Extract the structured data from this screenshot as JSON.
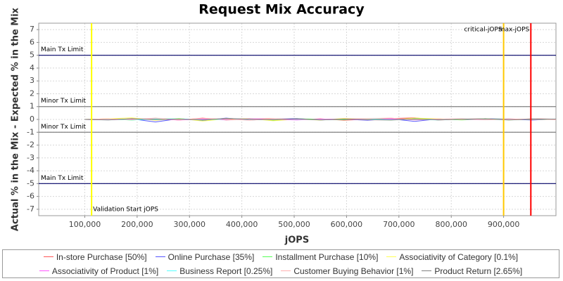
{
  "chart_data": {
    "type": "line",
    "title": "Request Mix Accuracy",
    "x_label": "jOPS",
    "y_label": "Actual % in the Mix - Expected % in the Mix",
    "x": [
      100000,
      145000,
      190000,
      235000,
      280000,
      325000,
      370000,
      415000,
      460000,
      505000,
      550000,
      595000,
      640000,
      685000,
      730000,
      775000,
      820000,
      865000,
      910000,
      955000,
      1000000
    ],
    "series": [
      {
        "name": "In-store Purchase [50%]",
        "color": "#ff5555",
        "values": [
          0,
          0.05,
          -0.03,
          0.08,
          -0.05,
          0.1,
          -0.04,
          0.03,
          0.06,
          -0.02,
          0.05,
          -0.06,
          0.02,
          0.07,
          0.12,
          -0.05,
          0.03,
          0.04,
          -0.02,
          0.05,
          0.02
        ]
      },
      {
        "name": "Online Purchase [35%]",
        "color": "#5555ff",
        "values": [
          0,
          -0.02,
          0.04,
          -0.2,
          0.06,
          -0.08,
          0.1,
          -0.05,
          0.03,
          0.07,
          -0.04,
          0.02,
          -0.06,
          0.05,
          -0.15,
          0.04,
          -0.03,
          0.06,
          0.02,
          -0.05,
          0.03
        ]
      },
      {
        "name": "Installment Purchase [10%]",
        "color": "#55ff55",
        "values": [
          0,
          0.03,
          -0.05,
          0.06,
          0.02,
          -0.04,
          0.05,
          0.03,
          -0.06,
          0.04,
          0.02,
          -0.03,
          0.05,
          -0.02,
          0.06,
          0.03,
          -0.04,
          0.02,
          0.05,
          -0.03,
          0.01
        ]
      },
      {
        "name": "Associativity of Category [0.1%]",
        "color": "#ffff55",
        "values": [
          0,
          0.05,
          0.12,
          -0.06,
          0.08,
          -0.12,
          0.04,
          0.06,
          -0.1,
          0.02,
          -0.05,
          0.08,
          0.03,
          -0.04,
          0.1,
          0.05,
          -0.02,
          0.06,
          -0.04,
          0.03,
          0.02
        ]
      },
      {
        "name": "Associativity of Product [1%]",
        "color": "#ff55ff",
        "values": [
          0,
          -0.03,
          0.02,
          0.04,
          -0.05,
          0.03,
          -0.02,
          0.05,
          0.01,
          -0.04,
          0.03,
          0.02,
          -0.03,
          0.04,
          -0.02,
          0.03,
          0.01,
          -0.02,
          0.04,
          -0.01,
          0.02
        ]
      },
      {
        "name": "Business Report [0.25%]",
        "color": "#55ffff",
        "values": [
          0,
          0.02,
          -0.04,
          0.03,
          0.05,
          -0.03,
          0.02,
          -0.05,
          0.04,
          0.01,
          -0.02,
          0.03,
          0.05,
          -0.03,
          0.02,
          -0.04,
          0.03,
          0.01,
          -0.02,
          0.04,
          0.01
        ]
      },
      {
        "name": "Customer Buying Behavior [1%]",
        "color": "#ffafaf",
        "values": [
          0,
          0.04,
          -0.02,
          0.1,
          -0.04,
          0.08,
          0.02,
          -0.06,
          0.05,
          0.03,
          -0.03,
          0.04,
          0.06,
          0.1,
          -0.04,
          0.02,
          0.05,
          -0.03,
          0.02,
          0.03,
          -0.02
        ]
      },
      {
        "name": "Product Return [2.65%]",
        "color": "#808080",
        "values": [
          0,
          -0.04,
          0.06,
          -0.02,
          0.03,
          -0.05,
          0.08,
          0.02,
          -0.03,
          0.05,
          -0.04,
          0.03,
          -0.02,
          -0.05,
          0.04,
          -0.03,
          0.02,
          0.05,
          -0.04,
          0.02,
          0.03
        ]
      }
    ],
    "xlim": [
      12000,
      1000000
    ],
    "ylim": [
      -7.5,
      7.5
    ],
    "xticks": [
      {
        "value": 100000,
        "label": "100,000"
      },
      {
        "value": 200000,
        "label": "200,000"
      },
      {
        "value": 300000,
        "label": "300,000"
      },
      {
        "value": 400000,
        "label": "400,000"
      },
      {
        "value": 500000,
        "label": "500,000"
      },
      {
        "value": 600000,
        "label": "600,000"
      },
      {
        "value": 700000,
        "label": "700,000"
      },
      {
        "value": 800000,
        "label": "800,000"
      },
      {
        "value": 900000,
        "label": "900,000"
      }
    ],
    "yticks": [
      -7,
      -6,
      -5,
      -4,
      -3,
      -2,
      -1,
      0,
      1,
      2,
      3,
      4,
      5,
      6,
      7
    ],
    "grid": true,
    "x_markers": [
      {
        "value": 113000,
        "label": "Validation Start jOPS",
        "color": "#ffff00",
        "label_position": "bottom-right"
      },
      {
        "value": 900000,
        "label": "critical-jOPS",
        "color": "#ffc800",
        "label_position": "top-left"
      },
      {
        "value": 952000,
        "label": "max-jOPS",
        "color": "#ff0000",
        "label_position": "top-left"
      }
    ],
    "y_markers": [
      {
        "value": 5,
        "label": "Main Tx Limit",
        "color": "#000066"
      },
      {
        "value": 1,
        "label": "Minor Tx Limit",
        "color": "#808080"
      },
      {
        "value": -1,
        "label": "Minor Tx Limit",
        "color": "#808080"
      },
      {
        "value": -5,
        "label": "Main Tx Limit",
        "color": "#000066"
      }
    ]
  }
}
